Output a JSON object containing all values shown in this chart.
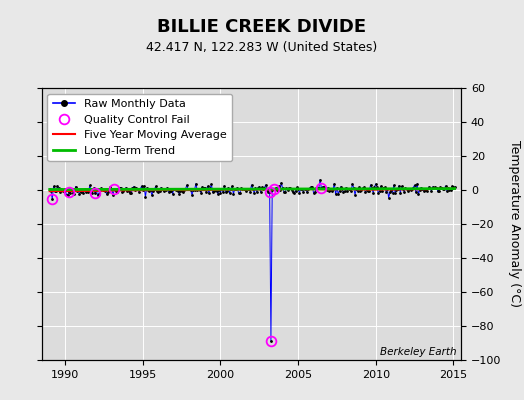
{
  "title": "BILLIE CREEK DIVIDE",
  "subtitle": "42.417 N, 122.283 W (United States)",
  "ylabel": "Temperature Anomaly (°C)",
  "watermark": "Berkeley Earth",
  "ylim": [
    -100,
    60
  ],
  "xlim": [
    1988.5,
    2015.5
  ],
  "yticks": [
    -100,
    -80,
    -60,
    -40,
    -20,
    0,
    20,
    40,
    60
  ],
  "xticks": [
    1990,
    1995,
    2000,
    2005,
    2010,
    2015
  ],
  "fig_bg_color": "#e8e8e8",
  "plot_bg_color": "#dcdcdc",
  "raw_line_color": "#0000ff",
  "raw_dot_color": "#000000",
  "ma_color": "#ff0000",
  "trend_color": "#00bb00",
  "qc_marker_color": "magenta",
  "spike_value": -89.0,
  "n_months": 314,
  "seed": 42,
  "title_fontsize": 13,
  "subtitle_fontsize": 9,
  "ylabel_fontsize": 9,
  "tick_fontsize": 8,
  "legend_fontsize": 8
}
